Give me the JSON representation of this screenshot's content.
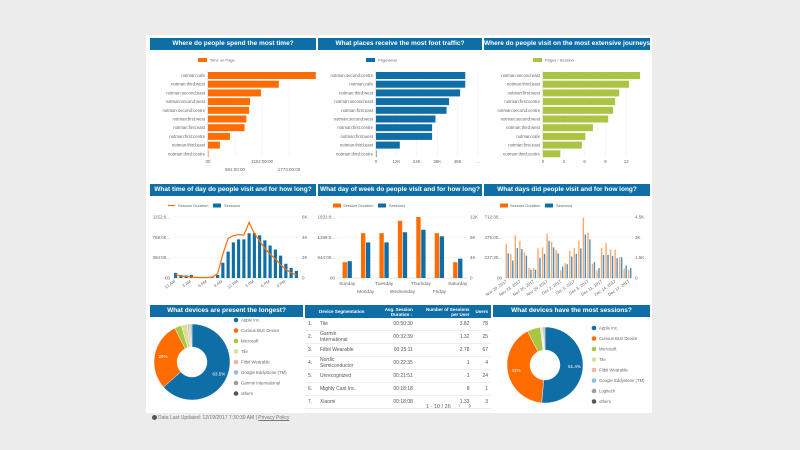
{
  "colors": {
    "header": "#0f6ea6",
    "orange": "#ff6d00",
    "blue": "#0f6ea6",
    "green": "#aac544"
  },
  "panels": {
    "p1": "Where do people spend the most time?",
    "p2": "What places receive the most foot traffic?",
    "p3": "Where do people visit on the most extensive journeys?",
    "p4": "What time of day do people visit and for how long?",
    "p5": "What day of week do people visit and for how long?",
    "p6": "What days did people visit and for how long?",
    "p7": "What devices are present the longest?",
    "p9": "What devices have the most sessions?"
  },
  "chart_data": [
    {
      "type": "bar",
      "orientation": "horizontal",
      "legend": "Time on Page",
      "color": "#ff6d00",
      "categories": [
        "notman:cafe",
        "notman:third:west",
        "notman:second:east",
        "notman:second:west",
        "notman:second:centre",
        "notman:first:west",
        "notman:first:east",
        "notman:first:centre",
        "notman:third:east",
        "notman:third:centre"
      ],
      "values": [
        2360,
        1550,
        1160,
        920,
        900,
        840,
        800,
        480,
        260,
        0
      ],
      "xticks": [
        "00",
        "591:00:00",
        "1182:00:00",
        "1773:00:00"
      ],
      "xtick_values": [
        0,
        591,
        1182,
        1773
      ],
      "xlim": [
        0,
        2364
      ]
    },
    {
      "type": "bar",
      "orientation": "horizontal",
      "legend": "Pageviews",
      "color": "#0f6ea6",
      "categories": [
        "notman:second:centre",
        "notman:cafe",
        "notman:third:west",
        "notman:second:east",
        "notman:first:east",
        "notman:second:west",
        "notman:first:centre",
        "notman:first:west",
        "notman:third:east",
        "notman:third:centre"
      ],
      "values": [
        52500,
        52500,
        49500,
        43000,
        41500,
        35000,
        33000,
        33000,
        14000,
        0
      ],
      "xticks": [
        "0",
        "12K",
        "24K",
        "36K",
        "48K",
        "..."
      ],
      "xtick_values": [
        0,
        12000,
        24000,
        36000,
        48000,
        60000
      ],
      "xlim": [
        0,
        60000
      ]
    },
    {
      "type": "bar",
      "orientation": "horizontal",
      "legend": "Pages / Session",
      "color": "#aac544",
      "categories": [
        "notman:second:east",
        "notman:third:east",
        "notman:first:west",
        "notman:first:centre",
        "notman:second:centre",
        "notman:second:west",
        "notman:third:west",
        "notman:cafe",
        "notman:first:east",
        "notman:third:centre"
      ],
      "values": [
        14,
        12.4,
        11,
        10.4,
        10.1,
        9.4,
        7.2,
        6.1,
        5.6,
        2.5
      ],
      "xticks": [
        "0",
        "3",
        "6",
        "9",
        "12"
      ],
      "xtick_values": [
        0,
        3,
        6,
        9,
        12
      ],
      "xlim": [
        0,
        15
      ]
    },
    {
      "type": "combo",
      "legend": [
        "Session Duration",
        "Sessions"
      ],
      "categories": [
        "12 AM",
        "1 AM",
        "2 AM",
        "3 AM",
        "4 AM",
        "5 AM",
        "6 AM",
        "7 AM",
        "8 AM",
        "9 AM",
        "10 AM",
        "11 AM",
        "12 PM",
        "1 PM",
        "2 PM",
        "3 PM",
        "4 PM",
        "5 PM",
        "6 PM",
        "7 PM",
        "8 PM",
        "9 PM",
        "10 PM",
        "11 PM"
      ],
      "xtick_every": 3,
      "line": {
        "name": "Session Duration",
        "values": [
          60,
          40,
          30,
          20,
          10,
          10,
          10,
          20,
          80,
          450,
          750,
          800,
          820,
          810,
          1050,
          840,
          700,
          560,
          450,
          360,
          250,
          160,
          100,
          60
        ]
      },
      "bars": {
        "name": "Sessions",
        "values": [
          500,
          300,
          250,
          300,
          100,
          50,
          50,
          50,
          300,
          1500,
          2600,
          3500,
          3800,
          3800,
          4400,
          4400,
          4200,
          3700,
          3200,
          2800,
          2200,
          1400,
          1000,
          700
        ]
      },
      "yleft": {
        "ticks": [
          "00",
          "384:00...",
          "768:00...",
          "1152:0..."
        ],
        "range": [
          0,
          1152
        ]
      },
      "yright": {
        "ticks": [
          "0",
          "2K",
          "4K",
          "6K"
        ],
        "range": [
          0,
          6000
        ]
      },
      "style": "bars+line"
    },
    {
      "type": "bar",
      "legend": [
        "Session Duration",
        "Sessions"
      ],
      "categories": [
        "Sunday",
        "Monday",
        "Tuesday",
        "Wednesday",
        "Thursday",
        "Friday",
        "Saturday"
      ],
      "series": [
        {
          "name": "Session Duration",
          "values": [
            500,
            1420,
            1420,
            1810,
            1930,
            1420,
            500
          ]
        },
        {
          "name": "Sessions",
          "values": [
            3300,
            7000,
            7000,
            9000,
            9500,
            8200,
            3800
          ]
        }
      ],
      "yleft": {
        "ticks": [
          "00",
          "644:00...",
          "1288:0...",
          "1932:0..."
        ],
        "range": [
          0,
          1932
        ]
      },
      "yright": {
        "ticks": [
          "0",
          "4K",
          "8K",
          "12K"
        ],
        "range": [
          0,
          12000
        ]
      }
    },
    {
      "type": "bar",
      "legend": [
        "Session Duration",
        "Sessions"
      ],
      "categories": [
        "Nov 20, 2017",
        "Nov 21, 2017",
        "Nov 22, 2017",
        "Nov 23, 2017",
        "Nov 24, 2017",
        "Nov 25, 2017",
        "Nov 26, 2017",
        "Nov 27, 2017",
        "Nov 28, 2017",
        "Nov 29, 2017",
        "Nov 30, 2017",
        "Dec 1, 2017",
        "Dec 2, 2017",
        "Dec 3, 2017",
        "Dec 4, 2017",
        "Dec 5, 2017",
        "Dec 6, 2017",
        "Dec 7, 2017",
        "Dec 8, 2017",
        "Dec 9, 2017",
        "Dec 10, 2017",
        "Dec 11, 2017",
        "Dec 12, 2017",
        "Dec 13, 2017",
        "Dec 14, 2017",
        "Dec 15, 2017",
        "Dec 16, 2017",
        "Dec 17, 2017"
      ],
      "xtick_every": 3,
      "series": [
        {
          "name": "Session Duration",
          "values": [
            396,
            281,
            500,
            435,
            300,
            119,
            115,
            346,
            358,
            520,
            424,
            331,
            89,
            177,
            320,
            350,
            435,
            705,
            531,
            166,
            89,
            350,
            408,
            331,
            331,
            243,
            108,
            96
          ]
        },
        {
          "name": "Sessions",
          "values": [
            1820,
            1290,
            2210,
            2140,
            1650,
            610,
            610,
            1480,
            1780,
            2750,
            2260,
            1820,
            850,
            1020,
            1580,
            1780,
            2190,
            3210,
            2850,
            1170,
            730,
            1700,
            1700,
            1630,
            1460,
            1530,
            920,
            750
          ]
        }
      ],
      "yleft": {
        "ticks": [
          "00",
          "237:30...",
          "475:00...",
          "712:30..."
        ],
        "range": [
          0,
          712.5
        ]
      },
      "yright": {
        "ticks": [
          "0",
          "1.5K",
          "3K",
          "4.5K"
        ],
        "range": [
          0,
          4500
        ]
      }
    },
    {
      "type": "pie",
      "donut": true,
      "slices": [
        {
          "label": "Apple Inc.",
          "value": 63.5,
          "color": "#0f6ea6",
          "shown": "63.5%"
        },
        {
          "label": "Curious BLE Device",
          "value": 29,
          "color": "#ff6d00",
          "shown": "29%"
        },
        {
          "label": "Microsoft",
          "value": 3,
          "color": "#aac544"
        },
        {
          "label": "Tile",
          "value": 2.5,
          "color": "#d3e29a"
        },
        {
          "label": "Fitbit Wearable",
          "value": 0.8,
          "color": "#f7b595"
        },
        {
          "label": "Google Eddystone (TM)",
          "value": 0.5,
          "color": "#8cbfe3"
        },
        {
          "label": "Garmin International",
          "value": 0.4,
          "color": "#9e9e9e"
        },
        {
          "label": "others",
          "value": 0.3,
          "color": "#555555"
        }
      ]
    },
    {
      "type": "pie",
      "donut": true,
      "slices": [
        {
          "label": "Apple Inc.",
          "value": 51.4,
          "color": "#0f6ea6",
          "shown": "51.4%"
        },
        {
          "label": "Curious BLE Device",
          "value": 41,
          "color": "#ff6d00",
          "shown": "41%"
        },
        {
          "label": "Microsoft",
          "value": 5.6,
          "color": "#aac544"
        },
        {
          "label": "Tile",
          "value": 0.6,
          "color": "#d3e29a"
        },
        {
          "label": "Fitbit Wearable",
          "value": 0.3,
          "color": "#f7b595"
        },
        {
          "label": "Google Eddystone (TM)",
          "value": 0.3,
          "color": "#8cbfe3"
        },
        {
          "label": "Logitech",
          "value": 0.5,
          "color": "#9e9e9e"
        },
        {
          "label": "others",
          "value": 0.3,
          "color": "#555555"
        }
      ]
    }
  ],
  "table": {
    "headers": [
      "Device Segmentation",
      "Avg. Session Duration ↓",
      "Number of Sessions per User",
      "Users"
    ],
    "rows": [
      [
        "1.",
        "Tile",
        "00:50:30",
        "3.82",
        "78"
      ],
      [
        "2.",
        "Garmin International",
        "00:32:39",
        "1.32",
        "25"
      ],
      [
        "3.",
        "Fitbit Wearable",
        "00:25:11",
        "2.78",
        "67"
      ],
      [
        "4.",
        "Nordic Semiconductor",
        "00:22:35",
        "1",
        "4"
      ],
      [
        "5.",
        "Unrecognized",
        "00:21:51",
        "1",
        "24"
      ],
      [
        "6.",
        "Mighty Cast Inc.",
        "00:18:18",
        "8",
        "1"
      ],
      [
        "7.",
        "Xiaomi",
        "00:18:08",
        "1.33",
        "3"
      ]
    ],
    "pagination": "1 - 10 / 26",
    "prev": "‹",
    "next": "›"
  },
  "footer": {
    "updated": "Data Last Updated: 12/19/2017 7:30:30 AM",
    "privacy": "Privacy Policy"
  }
}
